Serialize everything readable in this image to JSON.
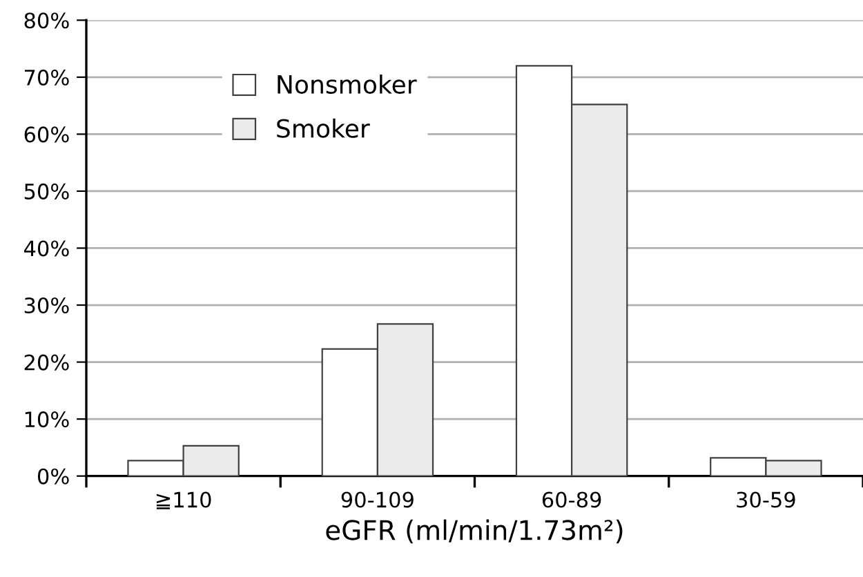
{
  "chart_data": {
    "type": "bar",
    "xlabel": "eGFR (ml/min/1.73m²)",
    "categories": [
      "≧110",
      "90-109",
      "60-89",
      "30-59"
    ],
    "series": [
      {
        "name": "Nonsmoker",
        "color": "#ffffff",
        "values": [
          2.7,
          22.3,
          72.0,
          3.2
        ]
      },
      {
        "name": "Smoker",
        "color": "#ebebeb",
        "values": [
          5.3,
          26.7,
          65.2,
          2.7
        ]
      }
    ],
    "ylim": [
      0,
      80
    ],
    "yticks": [
      {
        "value": 0,
        "label": "0%"
      },
      {
        "value": 10,
        "label": "10%"
      },
      {
        "value": 20,
        "label": "20%"
      },
      {
        "value": 30,
        "label": "30%"
      },
      {
        "value": 40,
        "label": "40%"
      },
      {
        "value": 50,
        "label": "50%"
      },
      {
        "value": 60,
        "label": "60%"
      },
      {
        "value": 70,
        "label": "70%"
      },
      {
        "value": 80,
        "label": "80%"
      }
    ],
    "grid": "y",
    "legend": "top left"
  }
}
